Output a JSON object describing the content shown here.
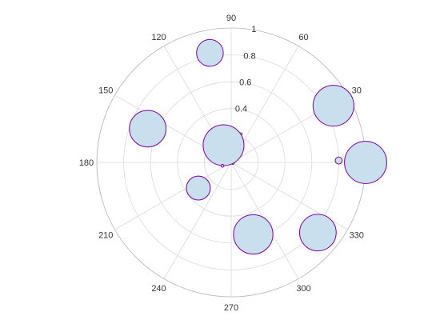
{
  "chart_data": {
    "type": "scatter",
    "coordinate_system": "polar",
    "theta_unit": "degrees",
    "theta_ticks": [
      "0",
      "30",
      "60",
      "90",
      "120",
      "150",
      "180",
      "210",
      "240",
      "270",
      "300",
      "330"
    ],
    "theta_values": [
      0,
      30,
      60,
      90,
      120,
      150,
      180,
      210,
      240,
      270,
      300,
      330
    ],
    "r_ticks": [
      "0",
      "0.2",
      "0.4",
      "0.6",
      "0.8",
      "1"
    ],
    "r_values": [
      0,
      0.2,
      0.4,
      0.6,
      0.8,
      1
    ],
    "rlim": [
      0,
      1
    ],
    "grid": true,
    "marker_fill": "#c9dfee",
    "marker_edge": "#7b0099",
    "points": [
      {
        "theta": 0,
        "r": 1.0,
        "size": 30
      },
      {
        "theta": 1,
        "r": 0.8,
        "size": 5
      },
      {
        "theta": 29,
        "r": 0.87,
        "size": 29
      },
      {
        "theta": 101,
        "r": 0.83,
        "size": 19
      },
      {
        "theta": 158,
        "r": 0.67,
        "size": 26
      },
      {
        "theta": 114,
        "r": 0.14,
        "size": 29
      },
      {
        "theta": 201,
        "r": 0.07,
        "size": 2
      },
      {
        "theta": 218,
        "r": 0.31,
        "size": 17
      },
      {
        "theta": 287,
        "r": 0.56,
        "size": 28
      },
      {
        "theta": 321,
        "r": 0.83,
        "size": 26
      }
    ]
  }
}
